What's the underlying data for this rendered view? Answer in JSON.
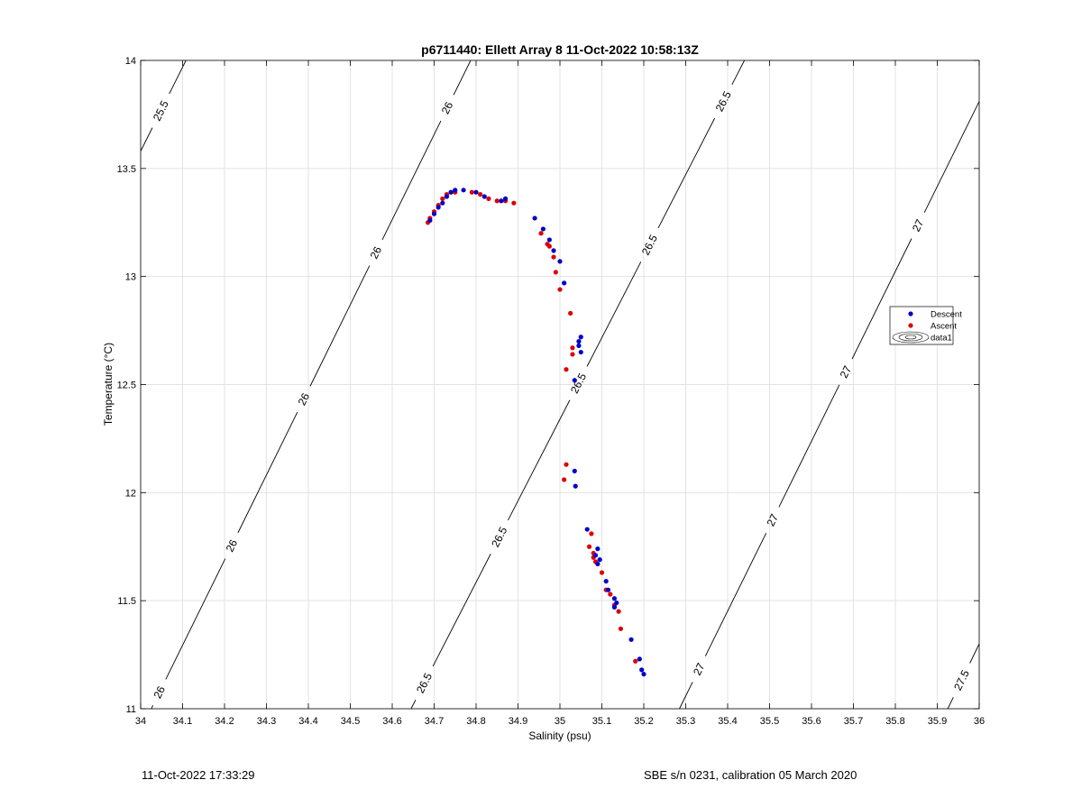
{
  "chart_data": {
    "type": "scatter",
    "title": "p6711440: Ellett Array 8 11-Oct-2022 10:58:13Z",
    "xlabel": "Salinity (psu)",
    "ylabel": "Temperature (°C)",
    "xlim": [
      34,
      36
    ],
    "ylim": [
      11,
      14
    ],
    "grid": true,
    "xticks": [
      "34",
      "34.1",
      "34.2",
      "34.3",
      "34.4",
      "34.5",
      "34.6",
      "34.7",
      "34.8",
      "34.9",
      "35",
      "35.1",
      "35.2",
      "35.3",
      "35.4",
      "35.5",
      "35.6",
      "35.7",
      "35.8",
      "35.9",
      "36"
    ],
    "yticks": [
      "11",
      "11.5",
      "12",
      "12.5",
      "13",
      "13.5",
      "14"
    ],
    "legend_position": "right",
    "legend": [
      "Descent",
      "Ascent",
      "data1"
    ],
    "colors": {
      "descent": "#0000cc",
      "ascent": "#dd0000",
      "contour": "#000000",
      "grid": "#e3e3e3"
    },
    "density_contours": [
      {
        "label": "25.5",
        "points": [
          [
            34.0,
            13.58
          ],
          [
            34.108,
            14.0
          ]
        ],
        "labels_at": [
          [
            34.045,
            13.77
          ]
        ]
      },
      {
        "label": "26",
        "points": [
          [
            34.0,
            10.9
          ],
          [
            34.787,
            14.0
          ]
        ],
        "labels_at": [
          [
            34.03,
            11.09
          ],
          [
            34.19,
            11.78
          ],
          [
            34.36,
            12.46
          ],
          [
            34.53,
            13.14
          ],
          [
            34.7,
            13.81
          ]
        ]
      },
      {
        "label": "26.5",
        "points": [
          [
            34.645,
            11.0
          ],
          [
            35.44,
            14.0
          ]
        ],
        "labels_at": [
          [
            34.675,
            11.12
          ],
          [
            34.84,
            11.81
          ],
          [
            35.02,
            12.53
          ],
          [
            35.19,
            13.17
          ],
          [
            35.36,
            13.84
          ]
        ]
      },
      {
        "label": "27",
        "points": [
          [
            35.285,
            11.0
          ],
          [
            36.0,
            13.81
          ]
        ],
        "labels_at": [
          [
            35.335,
            11.18
          ],
          [
            35.51,
            11.87
          ],
          [
            35.68,
            12.56
          ],
          [
            35.86,
            13.23
          ]
        ]
      },
      {
        "label": "27.5",
        "points": [
          [
            35.925,
            11.0
          ],
          [
            36.0,
            11.3
          ]
        ],
        "labels_at": [
          [
            35.96,
            11.13
          ]
        ]
      }
    ],
    "series": [
      {
        "name": "Descent",
        "points": [
          [
            34.69,
            13.26
          ],
          [
            34.7,
            13.29
          ],
          [
            34.71,
            13.32
          ],
          [
            34.72,
            13.34
          ],
          [
            34.73,
            13.37
          ],
          [
            34.74,
            13.39
          ],
          [
            34.75,
            13.4
          ],
          [
            34.77,
            13.4
          ],
          [
            34.8,
            13.39
          ],
          [
            34.82,
            13.37
          ],
          [
            34.86,
            13.35
          ],
          [
            34.87,
            13.36
          ],
          [
            34.94,
            13.27
          ],
          [
            34.96,
            13.22
          ],
          [
            34.975,
            13.17
          ],
          [
            34.985,
            13.12
          ],
          [
            35.0,
            13.07
          ],
          [
            35.01,
            12.97
          ],
          [
            35.045,
            12.7
          ],
          [
            35.05,
            12.72
          ],
          [
            35.045,
            12.68
          ],
          [
            35.05,
            12.65
          ],
          [
            35.035,
            12.52
          ],
          [
            35.035,
            12.1
          ],
          [
            35.037,
            12.03
          ],
          [
            35.065,
            11.83
          ],
          [
            35.09,
            11.74
          ],
          [
            35.085,
            11.71
          ],
          [
            35.095,
            11.69
          ],
          [
            35.09,
            11.67
          ],
          [
            35.11,
            11.59
          ],
          [
            35.115,
            11.55
          ],
          [
            35.13,
            11.51
          ],
          [
            35.135,
            11.49
          ],
          [
            35.13,
            11.47
          ],
          [
            35.17,
            11.32
          ],
          [
            35.19,
            11.23
          ],
          [
            35.195,
            11.18
          ],
          [
            35.2,
            11.16
          ]
        ]
      },
      {
        "name": "Ascent",
        "points": [
          [
            34.685,
            13.25
          ],
          [
            34.69,
            13.27
          ],
          [
            34.7,
            13.3
          ],
          [
            34.71,
            13.33
          ],
          [
            34.72,
            13.36
          ],
          [
            34.73,
            13.38
          ],
          [
            34.74,
            13.39
          ],
          [
            34.75,
            13.39
          ],
          [
            34.79,
            13.39
          ],
          [
            34.81,
            13.38
          ],
          [
            34.83,
            13.36
          ],
          [
            34.85,
            13.35
          ],
          [
            34.87,
            13.35
          ],
          [
            34.89,
            13.34
          ],
          [
            34.955,
            13.2
          ],
          [
            34.97,
            13.15
          ],
          [
            34.975,
            13.14
          ],
          [
            34.985,
            13.09
          ],
          [
            34.99,
            13.02
          ],
          [
            35.0,
            12.94
          ],
          [
            35.025,
            12.83
          ],
          [
            35.03,
            12.67
          ],
          [
            35.03,
            12.64
          ],
          [
            35.015,
            12.57
          ],
          [
            35.015,
            12.13
          ],
          [
            35.01,
            12.06
          ],
          [
            35.075,
            11.81
          ],
          [
            35.07,
            11.75
          ],
          [
            35.08,
            11.72
          ],
          [
            35.085,
            11.68
          ],
          [
            35.08,
            11.7
          ],
          [
            35.1,
            11.63
          ],
          [
            35.11,
            11.55
          ],
          [
            35.12,
            11.53
          ],
          [
            35.13,
            11.48
          ],
          [
            35.14,
            11.45
          ],
          [
            35.145,
            11.37
          ],
          [
            35.18,
            11.22
          ]
        ]
      }
    ]
  },
  "footer": {
    "timestamp": "11-Oct-2022 17:33:29",
    "instrument": "SBE s/n 0231, calibration 05 March 2020"
  }
}
